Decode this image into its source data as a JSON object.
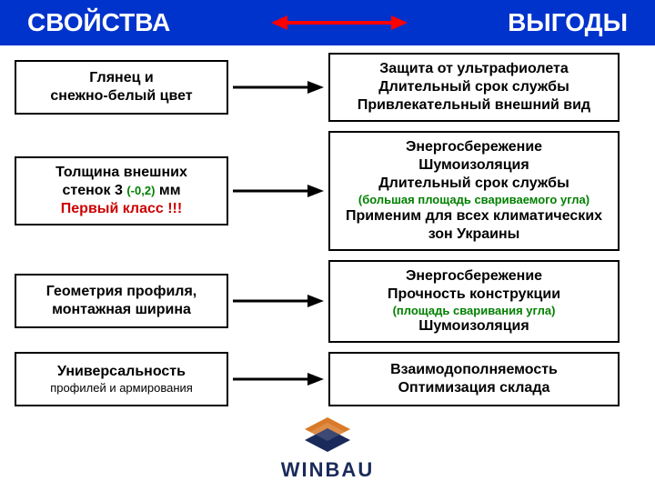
{
  "header": {
    "left": "СВОЙСТВА",
    "right": "ВЫГОДЫ",
    "bg_color": "#0033cc",
    "text_color": "#ffffff",
    "arrow_color": "#ff0000",
    "arrow_type": "double"
  },
  "row_arrow": {
    "color": "#000000",
    "type": "single-right"
  },
  "rows": [
    {
      "property": {
        "lines": [
          {
            "text": "Глянец и",
            "style": "main"
          },
          {
            "text": "снежно-белый цвет",
            "style": "main"
          }
        ]
      },
      "benefit": {
        "lines": [
          {
            "text": "Защита от ультрафиолета",
            "style": "main"
          },
          {
            "text": "Длительный срок службы",
            "style": "main"
          },
          {
            "text": "Привлекательный внешний вид",
            "style": "main"
          }
        ]
      }
    },
    {
      "property": {
        "lines": [
          {
            "text": "Толщина внешних",
            "style": "main"
          },
          {
            "text": "стенок  3 ",
            "style": "main",
            "inline_after": {
              "text": "(-0,2)",
              "style": "green"
            },
            "inline_after2": {
              "text": " мм",
              "style": "main"
            }
          },
          {
            "text": "Первый класс !!!",
            "style": "red"
          }
        ]
      },
      "benefit": {
        "lines": [
          {
            "text": "Энергосбережение",
            "style": "main"
          },
          {
            "text": "Шумоизоляция",
            "style": "main"
          },
          {
            "text": "Длительный срок службы",
            "style": "main"
          },
          {
            "text": "(большая площадь свариваемого угла)",
            "style": "green"
          },
          {
            "text": "Применим для всех климатических",
            "style": "main"
          },
          {
            "text": "зон Украины",
            "style": "main"
          }
        ]
      }
    },
    {
      "property": {
        "lines": [
          {
            "text": "Геометрия профиля,",
            "style": "main"
          },
          {
            "text": "монтажная ширина",
            "style": "main"
          }
        ]
      },
      "benefit": {
        "lines": [
          {
            "text": "Энергосбережение",
            "style": "main"
          },
          {
            "text": "Прочность конструкции",
            "style": "main"
          },
          {
            "text": "(площадь сваривания угла)",
            "style": "green"
          },
          {
            "text": "Шумоизоляция",
            "style": "main"
          }
        ]
      }
    },
    {
      "property": {
        "lines": [
          {
            "text": "Универсальность",
            "style": "main"
          },
          {
            "text": "профилей и армирования",
            "style": "sub"
          }
        ]
      },
      "benefit": {
        "lines": [
          {
            "text": "Взаимодополняемость",
            "style": "main"
          },
          {
            "text": "Оптимизация склада",
            "style": "main"
          }
        ]
      }
    }
  ],
  "logo": {
    "brand": "WINBAU",
    "primary_color": "#d97a2a",
    "secondary_color": "#1a2a5a"
  },
  "box_style": {
    "border_color": "#000000",
    "border_width": 2,
    "bg_color": "#ffffff"
  }
}
